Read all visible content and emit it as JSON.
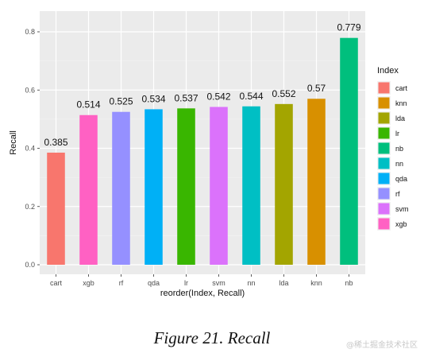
{
  "chart_data": {
    "type": "bar",
    "categories": [
      "cart",
      "xgb",
      "rf",
      "qda",
      "lr",
      "svm",
      "nn",
      "lda",
      "knn",
      "nb"
    ],
    "values": [
      0.385,
      0.514,
      0.525,
      0.534,
      0.537,
      0.542,
      0.544,
      0.552,
      0.57,
      0.779
    ],
    "data_labels": [
      "0.385",
      "0.514",
      "0.525",
      "0.534",
      "0.537",
      "0.542",
      "0.544",
      "0.552",
      "0.57",
      "0.779"
    ],
    "bar_colors": [
      "#F8766D",
      "#FF61C3",
      "#9590FF",
      "#00B0F6",
      "#39B600",
      "#DB72FB",
      "#00BFC4",
      "#A3A500",
      "#D89000",
      "#00BF7D"
    ],
    "xlabel": "reorder(Index, Recall)",
    "ylabel": "Recall",
    "ylim": [
      0,
      0.8
    ],
    "yticks": [
      0.0,
      0.2,
      0.4,
      0.6,
      0.8
    ],
    "ytick_labels": [
      "0.0",
      "0.2",
      "0.4",
      "0.6",
      "0.8"
    ],
    "grid": true,
    "legend": {
      "title": "Index",
      "placement": "right",
      "items": [
        {
          "label": "cart",
          "color": "#F8766D"
        },
        {
          "label": "knn",
          "color": "#D89000"
        },
        {
          "label": "lda",
          "color": "#A3A500"
        },
        {
          "label": "lr",
          "color": "#39B600"
        },
        {
          "label": "nb",
          "color": "#00BF7D"
        },
        {
          "label": "nn",
          "color": "#00BFC4"
        },
        {
          "label": "qda",
          "color": "#00B0F6"
        },
        {
          "label": "rf",
          "color": "#9590FF"
        },
        {
          "label": "svm",
          "color": "#DB72FB"
        },
        {
          "label": "xgb",
          "color": "#FF61C3"
        }
      ]
    }
  },
  "caption": "Figure 21. Recall",
  "watermark": "@稀土掘金技术社区"
}
